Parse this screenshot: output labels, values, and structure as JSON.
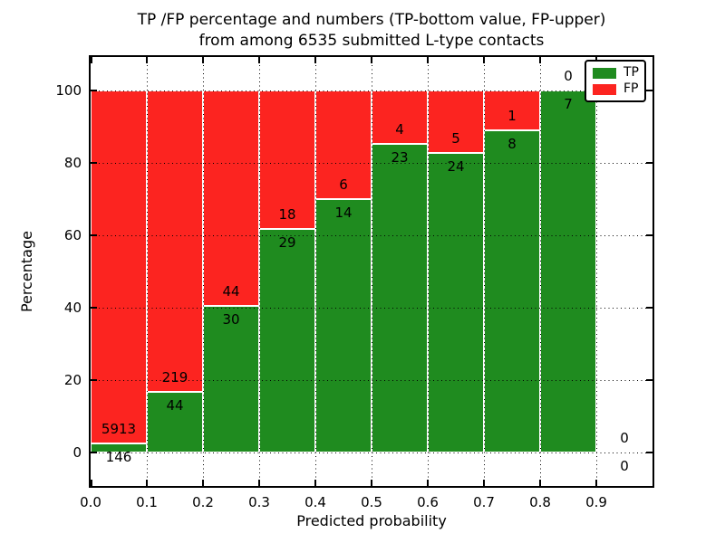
{
  "chart_data": {
    "type": "bar",
    "stacked": true,
    "normalized_to_percent": true,
    "title_line1": "TP /FP percentage and numbers (TP-bottom value, FP-upper)",
    "title_line2": "from among 6535 submitted L-type contacts",
    "xlabel": "Predicted probability",
    "ylabel": "Percentage",
    "grid": true,
    "legend_position": "upper right",
    "xlim": [
      0.0,
      1.0
    ],
    "ylim": [
      -9.25,
      109.25
    ],
    "x_ticks": [
      {
        "v": 0.0,
        "label": "0.0"
      },
      {
        "v": 0.1,
        "label": "0.1"
      },
      {
        "v": 0.2,
        "label": "0.2"
      },
      {
        "v": 0.3,
        "label": "0.3"
      },
      {
        "v": 0.4,
        "label": "0.4"
      },
      {
        "v": 0.5,
        "label": "0.5"
      },
      {
        "v": 0.6,
        "label": "0.6"
      },
      {
        "v": 0.7,
        "label": "0.7"
      },
      {
        "v": 0.8,
        "label": "0.8"
      },
      {
        "v": 0.9,
        "label": "0.9"
      }
    ],
    "y_ticks": [
      {
        "v": 0,
        "label": "0"
      },
      {
        "v": 20,
        "label": "20"
      },
      {
        "v": 40,
        "label": "40"
      },
      {
        "v": 60,
        "label": "60"
      },
      {
        "v": 80,
        "label": "80"
      },
      {
        "v": 100,
        "label": "100"
      }
    ],
    "bin_width": 0.1,
    "bins": [
      {
        "x0": 0.0,
        "x1": 0.1,
        "tp": 146,
        "fp": 5913,
        "tp_percent": 2.41
      },
      {
        "x0": 0.1,
        "x1": 0.2,
        "tp": 44,
        "fp": 219,
        "tp_percent": 16.73
      },
      {
        "x0": 0.2,
        "x1": 0.3,
        "tp": 30,
        "fp": 44,
        "tp_percent": 40.54
      },
      {
        "x0": 0.3,
        "x1": 0.4,
        "tp": 29,
        "fp": 18,
        "tp_percent": 61.7
      },
      {
        "x0": 0.4,
        "x1": 0.5,
        "tp": 14,
        "fp": 6,
        "tp_percent": 70.0
      },
      {
        "x0": 0.5,
        "x1": 0.6,
        "tp": 23,
        "fp": 4,
        "tp_percent": 85.19
      },
      {
        "x0": 0.6,
        "x1": 0.7,
        "tp": 24,
        "fp": 5,
        "tp_percent": 82.76
      },
      {
        "x0": 0.7,
        "x1": 0.8,
        "tp": 8,
        "fp": 1,
        "tp_percent": 88.89
      },
      {
        "x0": 0.8,
        "x1": 0.9,
        "tp": 7,
        "fp": 0,
        "tp_percent": 100.0
      },
      {
        "x0": 0.9,
        "x1": 1.0,
        "tp": 0,
        "fp": 0,
        "tp_percent": 0.0
      }
    ],
    "series": [
      {
        "name": "TP",
        "values": [
          146,
          44,
          30,
          29,
          14,
          23,
          24,
          8,
          7,
          0
        ]
      },
      {
        "name": "FP",
        "values": [
          5913,
          219,
          44,
          18,
          6,
          4,
          5,
          1,
          0,
          0
        ]
      }
    ],
    "legend": [
      {
        "label": "TP",
        "color": "#1f8b1f"
      },
      {
        "label": "FP",
        "color": "#fc2420"
      }
    ],
    "colors": {
      "tp": "#1f8b1f",
      "fp": "#fc2420",
      "bar_edge": "#ffffff",
      "grid": "#000000",
      "frame": "#000000"
    }
  }
}
